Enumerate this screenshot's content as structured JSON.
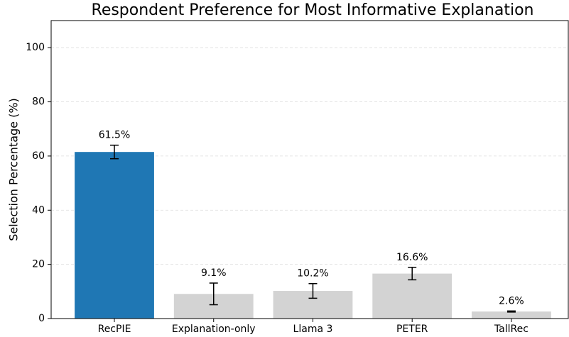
{
  "chart_data": {
    "type": "bar",
    "title": "Respondent Preference for Most Informative Explanation",
    "ylabel": "Selection Percentage (%)",
    "categories": [
      "RecPIE",
      "Explanation-only",
      "Llama 3",
      "PETER",
      "TallRec"
    ],
    "values": [
      61.5,
      9.1,
      10.2,
      16.6,
      2.6
    ],
    "value_labels": [
      "61.5%",
      "9.1%",
      "10.2%",
      "16.6%",
      "2.6%"
    ],
    "errors": [
      2.5,
      4.0,
      2.7,
      2.3,
      0.2
    ],
    "colors": [
      "#1f77b4",
      "#d3d3d3",
      "#d3d3d3",
      "#d3d3d3",
      "#d3d3d3"
    ],
    "ylim": [
      0,
      110
    ],
    "yticks": [
      0,
      20,
      40,
      60,
      80,
      100
    ],
    "grid": true
  }
}
